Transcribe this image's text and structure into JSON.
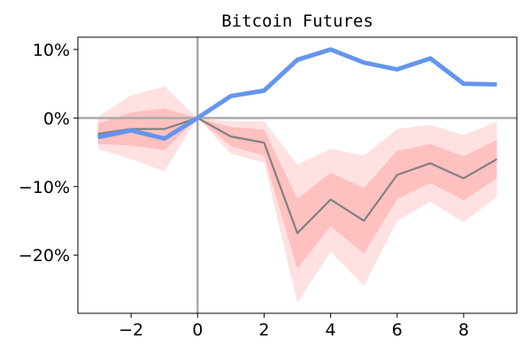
{
  "chart_data": {
    "type": "line",
    "title": "Bitcoin Futures",
    "xlabel": "",
    "ylabel": "",
    "x": [
      -3,
      -2,
      -1,
      0,
      1,
      2,
      3,
      4,
      5,
      6,
      7,
      8,
      9
    ],
    "xlim": [
      -3.6,
      9.6
    ],
    "ylim": [
      -28.5,
      11.8
    ],
    "x_ticks": [
      -2,
      0,
      2,
      4,
      6,
      8
    ],
    "x_tick_labels": [
      "−2",
      "0",
      "2",
      "4",
      "6",
      "8"
    ],
    "y_ticks": [
      10,
      0,
      -10,
      -20
    ],
    "y_tick_labels": [
      "10%",
      "0%",
      "−10%",
      "−20%"
    ],
    "reference_lines": {
      "x": 0,
      "y": 0,
      "color": "#aaaaaa"
    },
    "grid": false,
    "legend": "none",
    "series": [
      {
        "role": "highlight",
        "color": "#6495ed",
        "values": [
          -2.8,
          -1.8,
          -3.0,
          0.0,
          3.2,
          4.0,
          8.5,
          10.0,
          8.1,
          7.1,
          8.7,
          5.0,
          4.9
        ]
      },
      {
        "role": "mean",
        "color": "#808080",
        "values": [
          -2.3,
          -1.6,
          -1.6,
          0.0,
          -2.7,
          -3.6,
          -16.8,
          -11.9,
          -15.0,
          -8.3,
          -6.6,
          -8.8,
          -6.0
        ],
        "bands": [
          {
            "color": "#ffb3b3",
            "opacity": 0.4,
            "lower": [
              -4.5,
              -6.0,
              -7.8,
              0.0,
              -5.2,
              -6.5,
              -27.0,
              -19.5,
              -24.5,
              -15.0,
              -12.2,
              -15.2,
              -11.5
            ],
            "upper": [
              0.2,
              3.3,
              4.6,
              0.0,
              -0.5,
              -0.5,
              -6.8,
              -4.5,
              -5.5,
              -1.6,
              -1.0,
              -2.5,
              -0.5
            ]
          },
          {
            "color": "#ff9999",
            "opacity": 0.45,
            "lower": [
              -3.8,
              -4.0,
              -4.7,
              0.0,
              -4.1,
              -5.5,
              -22.0,
              -15.8,
              -19.8,
              -11.8,
              -9.5,
              -12.0,
              -8.8
            ],
            "upper": [
              -0.8,
              0.8,
              1.4,
              0.0,
              -1.3,
              -1.7,
              -11.8,
              -8.0,
              -10.2,
              -4.8,
              -3.8,
              -5.6,
              -3.2
            ]
          }
        ]
      }
    ]
  }
}
